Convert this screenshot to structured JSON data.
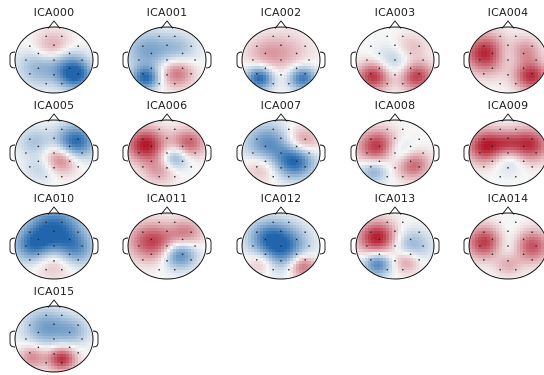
{
  "figure": {
    "topomaps": [
      {
        "label": "ICA000",
        "blobs": [
          [
            0.0,
            0.32,
            0.35,
            0.55
          ],
          [
            0.55,
            -0.45,
            0.3,
            -1.0
          ],
          [
            -0.35,
            -0.2,
            0.4,
            -0.5
          ],
          [
            0.3,
            0.0,
            0.35,
            -0.45
          ]
        ]
      },
      {
        "label": "ICA001",
        "blobs": [
          [
            0.25,
            -0.4,
            0.3,
            0.6
          ],
          [
            -0.55,
            -0.55,
            0.25,
            -0.95
          ],
          [
            -0.5,
            0.3,
            0.4,
            -0.55
          ],
          [
            0.3,
            0.35,
            0.35,
            -0.35
          ]
        ]
      },
      {
        "label": "ICA002",
        "blobs": [
          [
            -0.55,
            -0.55,
            0.25,
            -1.0
          ],
          [
            0.55,
            -0.55,
            0.25,
            -0.9
          ],
          [
            0.1,
            0.2,
            0.45,
            0.3
          ],
          [
            -0.45,
            0.2,
            0.35,
            0.25
          ]
        ]
      },
      {
        "label": "ICA003",
        "blobs": [
          [
            -0.55,
            -0.5,
            0.3,
            0.9
          ],
          [
            0.55,
            -0.5,
            0.3,
            0.85
          ],
          [
            0.0,
            -0.05,
            0.35,
            -0.35
          ],
          [
            0.4,
            0.35,
            0.3,
            0.3
          ]
        ]
      },
      {
        "label": "ICA004",
        "blobs": [
          [
            -0.55,
            0.2,
            0.4,
            1.0
          ],
          [
            0.6,
            -0.5,
            0.3,
            0.9
          ],
          [
            0.0,
            0.2,
            0.3,
            -0.4
          ],
          [
            0.4,
            0.25,
            0.3,
            0.55
          ]
        ]
      },
      {
        "label": "ICA005",
        "blobs": [
          [
            0.55,
            0.35,
            0.35,
            -1.0
          ],
          [
            0.15,
            -0.2,
            0.3,
            0.65
          ],
          [
            -0.5,
            0.35,
            0.3,
            -0.35
          ],
          [
            -0.3,
            -0.45,
            0.3,
            -0.3
          ]
        ]
      },
      {
        "label": "ICA006",
        "blobs": [
          [
            -0.55,
            0.25,
            0.35,
            1.0
          ],
          [
            0.55,
            0.3,
            0.3,
            0.7
          ],
          [
            0.2,
            -0.15,
            0.25,
            -0.6
          ],
          [
            -0.2,
            -0.5,
            0.3,
            0.4
          ]
        ]
      },
      {
        "label": "ICA007",
        "blobs": [
          [
            0.35,
            -0.25,
            0.35,
            -1.0
          ],
          [
            -0.35,
            0.3,
            0.4,
            -0.7
          ],
          [
            0.55,
            0.35,
            0.3,
            0.5
          ],
          [
            -0.5,
            -0.45,
            0.3,
            0.3
          ]
        ]
      },
      {
        "label": "ICA008",
        "blobs": [
          [
            -0.45,
            0.2,
            0.35,
            0.9
          ],
          [
            0.45,
            -0.35,
            0.3,
            0.7
          ],
          [
            0.1,
            0.0,
            0.3,
            -0.4
          ],
          [
            -0.55,
            -0.55,
            0.25,
            -0.5
          ]
        ]
      },
      {
        "label": "ICA009",
        "blobs": [
          [
            -0.55,
            0.2,
            0.35,
            1.0
          ],
          [
            0.55,
            0.25,
            0.35,
            0.9
          ],
          [
            0.0,
            -0.2,
            0.3,
            -0.3
          ],
          [
            0.0,
            0.3,
            0.25,
            0.4
          ]
        ]
      },
      {
        "label": "ICA010",
        "blobs": [
          [
            0.0,
            0.5,
            0.5,
            -1.0
          ],
          [
            -0.55,
            0.0,
            0.35,
            -0.7
          ],
          [
            0.55,
            -0.1,
            0.35,
            -0.6
          ],
          [
            0.0,
            -0.45,
            0.35,
            0.4
          ]
        ]
      },
      {
        "label": "ICA011",
        "blobs": [
          [
            0.3,
            -0.25,
            0.3,
            -0.9
          ],
          [
            -0.45,
            0.15,
            0.4,
            0.7
          ],
          [
            0.5,
            0.4,
            0.3,
            0.5
          ],
          [
            0.0,
            0.0,
            0.35,
            0.3
          ]
        ]
      },
      {
        "label": "ICA012",
        "blobs": [
          [
            0.0,
            0.0,
            0.45,
            -1.0
          ],
          [
            0.55,
            -0.6,
            0.25,
            0.7
          ],
          [
            -0.5,
            -0.5,
            0.25,
            0.4
          ],
          [
            -0.4,
            0.35,
            0.35,
            -0.4
          ]
        ]
      },
      {
        "label": "ICA013",
        "blobs": [
          [
            -0.45,
            0.25,
            0.35,
            1.0
          ],
          [
            -0.45,
            -0.55,
            0.25,
            -0.8
          ],
          [
            0.4,
            0.0,
            0.35,
            -0.5
          ],
          [
            0.3,
            -0.45,
            0.25,
            0.5
          ]
        ]
      },
      {
        "label": "ICA014",
        "blobs": [
          [
            -0.55,
            0.1,
            0.35,
            1.0
          ],
          [
            0.55,
            0.0,
            0.35,
            0.9
          ],
          [
            0.0,
            0.0,
            0.4,
            -0.5
          ],
          [
            0.0,
            -0.55,
            0.25,
            0.4
          ]
        ]
      },
      {
        "label": "ICA015",
        "blobs": [
          [
            0.2,
            -0.6,
            0.25,
            0.9
          ],
          [
            -0.2,
            0.35,
            0.4,
            -0.6
          ],
          [
            -0.55,
            -0.55,
            0.25,
            0.5
          ],
          [
            0.5,
            0.25,
            0.3,
            -0.4
          ]
        ]
      }
    ],
    "colors": {
      "negative": "#2166ac",
      "neutral": "#f7f7f7",
      "positive": "#b2182b"
    }
  }
}
